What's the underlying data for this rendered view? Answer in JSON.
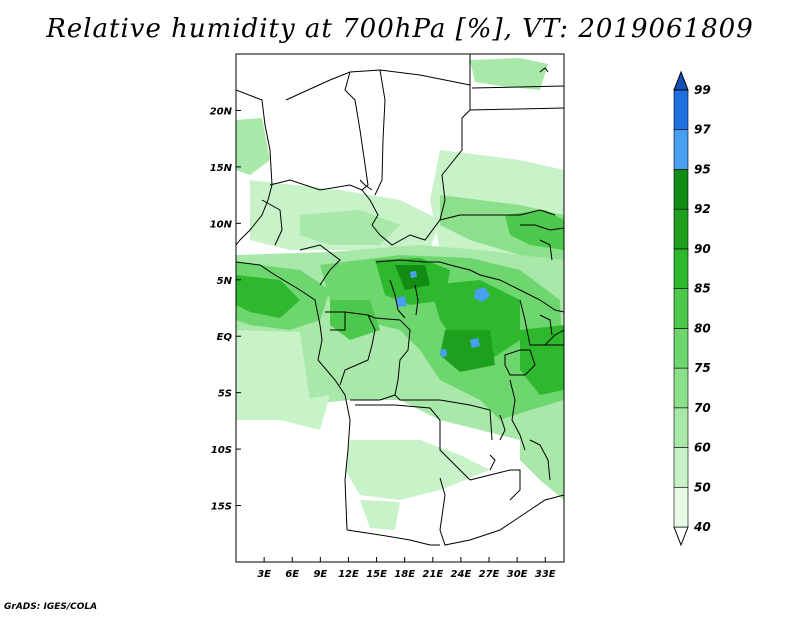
{
  "title": "Relative humidity at 700hPa [%], VT: 2019061809",
  "credit": "GrADS: IGES/COLA",
  "map": {
    "lon_range": [
      0,
      35
    ],
    "lat_range": [
      -20,
      25
    ],
    "lat_ticks": [
      {
        "value": 20,
        "label": "20N"
      },
      {
        "value": 15,
        "label": "15N"
      },
      {
        "value": 10,
        "label": "10N"
      },
      {
        "value": 5,
        "label": "5N"
      },
      {
        "value": 0,
        "label": "EQ"
      },
      {
        "value": -5,
        "label": "5S"
      },
      {
        "value": -10,
        "label": "10S"
      },
      {
        "value": -15,
        "label": "15S"
      }
    ],
    "lon_ticks": [
      {
        "value": 3,
        "label": "3E"
      },
      {
        "value": 6,
        "label": "6E"
      },
      {
        "value": 9,
        "label": "9E"
      },
      {
        "value": 12,
        "label": "12E"
      },
      {
        "value": 15,
        "label": "15E"
      },
      {
        "value": 18,
        "label": "18E"
      },
      {
        "value": 21,
        "label": "21E"
      },
      {
        "value": 24,
        "label": "24E"
      },
      {
        "value": 27,
        "label": "27E"
      },
      {
        "value": 30,
        "label": "30E"
      },
      {
        "value": 33,
        "label": "33E"
      }
    ]
  },
  "colorbar": {
    "levels": [
      "40",
      "50",
      "60",
      "70",
      "75",
      "80",
      "85",
      "90",
      "92",
      "95",
      "97",
      "99"
    ],
    "colors": [
      "#ffffff",
      "#e6fae6",
      "#c8f2c8",
      "#a8e8a8",
      "#8ce08c",
      "#6ed66e",
      "#4cc94c",
      "#2eb82e",
      "#1ea01e",
      "#128c12",
      "#4aa0f0",
      "#2070e0",
      "#1050b8"
    ]
  }
}
